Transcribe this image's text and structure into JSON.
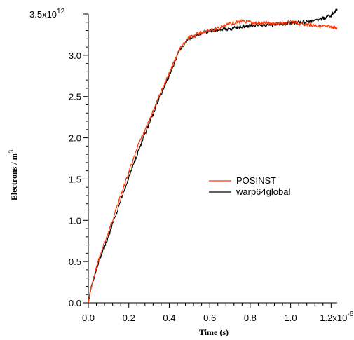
{
  "chart_data": {
    "type": "line",
    "xlabel": "Time (s)",
    "ylabel": "Electrons / m",
    "ylabel_superscript": "3",
    "xlim": [
      0,
      1.23e-06
    ],
    "ylim": [
      0,
      3500000000000.0
    ],
    "x_exponent_text": "-6",
    "y_exponent_text": "12",
    "x_ticks": [
      {
        "value": 0,
        "label": "0.0"
      },
      {
        "value": 2e-07,
        "label": "0.2"
      },
      {
        "value": 4e-07,
        "label": "0.4"
      },
      {
        "value": 6e-07,
        "label": "0.6"
      },
      {
        "value": 8e-07,
        "label": "0.8"
      },
      {
        "value": 1e-06,
        "label": "1.0"
      },
      {
        "value": 1.2e-06,
        "label": "1.2x10"
      }
    ],
    "y_ticks": [
      {
        "value": 0,
        "label": "0.0"
      },
      {
        "value": 500000000000.0,
        "label": "0.5"
      },
      {
        "value": 1000000000000.0,
        "label": "1.0"
      },
      {
        "value": 1500000000000.0,
        "label": "1.5"
      },
      {
        "value": 2000000000000.0,
        "label": "2.0"
      },
      {
        "value": 2500000000000.0,
        "label": "2.5"
      },
      {
        "value": 3000000000000.0,
        "label": "3.0"
      },
      {
        "value": 3500000000000.0,
        "label": "3.5x10"
      }
    ],
    "grid": false,
    "legend_position": "middle-right",
    "series": [
      {
        "name": "POSINST",
        "color": "#ff3300",
        "x": [
          0,
          1e-08,
          5e-08,
          1e-07,
          1.5e-07,
          2e-07,
          2.5e-07,
          3e-07,
          3.5e-07,
          4e-07,
          4.5e-07,
          5e-07,
          5.5e-07,
          6e-07,
          6.5e-07,
          7e-07,
          7.5e-07,
          8e-07,
          8.5e-07,
          9e-07,
          9.5e-07,
          1e-06,
          1.05e-06,
          1.1e-06,
          1.15e-06,
          1.2e-06,
          1.23e-06
        ],
        "values": [
          0,
          150000000000.0,
          520000000000.0,
          860000000000.0,
          1230000000000.0,
          1580000000000.0,
          1930000000000.0,
          2200000000000.0,
          2520000000000.0,
          2780000000000.0,
          3070000000000.0,
          3220000000000.0,
          3270000000000.0,
          3300000000000.0,
          3330000000000.0,
          3380000000000.0,
          3410000000000.0,
          3400000000000.0,
          3380000000000.0,
          3390000000000.0,
          3380000000000.0,
          3400000000000.0,
          3380000000000.0,
          3370000000000.0,
          3350000000000.0,
          3340000000000.0,
          3330000000000.0
        ]
      },
      {
        "name": "warp64global",
        "color": "#000000",
        "x": [
          0,
          1e-08,
          5e-08,
          1e-07,
          1.5e-07,
          2e-07,
          2.5e-07,
          3e-07,
          3.5e-07,
          4e-07,
          4.5e-07,
          5e-07,
          5.5e-07,
          6e-07,
          6.5e-07,
          7e-07,
          7.5e-07,
          8e-07,
          8.5e-07,
          9e-07,
          9.5e-07,
          1e-06,
          1.05e-06,
          1.1e-06,
          1.15e-06,
          1.2e-06,
          1.23e-06
        ],
        "values": [
          0,
          140000000000.0,
          490000000000.0,
          810000000000.0,
          1170000000000.0,
          1520000000000.0,
          1860000000000.0,
          2160000000000.0,
          2480000000000.0,
          2750000000000.0,
          3060000000000.0,
          3210000000000.0,
          3260000000000.0,
          3290000000000.0,
          3310000000000.0,
          3320000000000.0,
          3340000000000.0,
          3360000000000.0,
          3370000000000.0,
          3370000000000.0,
          3380000000000.0,
          3390000000000.0,
          3400000000000.0,
          3410000000000.0,
          3440000000000.0,
          3480000000000.0,
          3560000000000.0
        ]
      }
    ]
  }
}
